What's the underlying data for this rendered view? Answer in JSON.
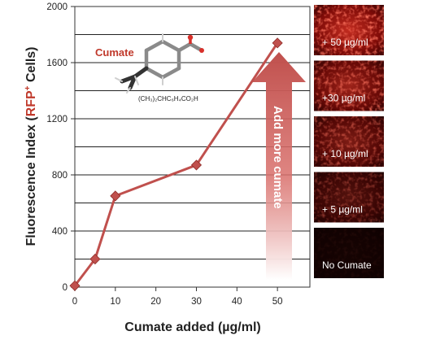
{
  "chart_data": {
    "type": "line",
    "xlabel": "Cumate added (µg/ml)",
    "ylabel_prefix": "Fluorescence Index (",
    "ylabel_highlight": "RFP",
    "ylabel_superscript": "+",
    "ylabel_suffix": " Cells)",
    "x_ticks": [
      "0",
      "10",
      "20",
      "30",
      "40",
      "50"
    ],
    "y_ticks": [
      "0",
      "400",
      "800",
      "1200",
      "1600",
      "2000"
    ],
    "xlim": [
      0,
      58
    ],
    "ylim": [
      0,
      2000
    ],
    "grid": "horizontal",
    "series": [
      {
        "color": "#c0504d",
        "x": [
          0,
          5,
          10,
          30,
          50
        ],
        "y": [
          10,
          200,
          650,
          870,
          1740
        ]
      }
    ]
  },
  "annotation": {
    "compound_name": "Cumate",
    "formula": "(CH₃)₂CHC₆H₄CO₂H",
    "arrow_text": "Add more cumate"
  },
  "panels": [
    {
      "label": "+ 50 µg/ml",
      "intensity": 1.0
    },
    {
      "label": "+30 µg/ml",
      "intensity": 0.8
    },
    {
      "label": "+ 10 µg/ml",
      "intensity": 0.62
    },
    {
      "label": "+ 5 µg/ml",
      "intensity": 0.4
    },
    {
      "label": "No Cumate",
      "intensity": 0.06
    }
  ],
  "colors": {
    "series": "#c0504d",
    "accent": "#c0392b",
    "arrow": "#c0504d"
  }
}
